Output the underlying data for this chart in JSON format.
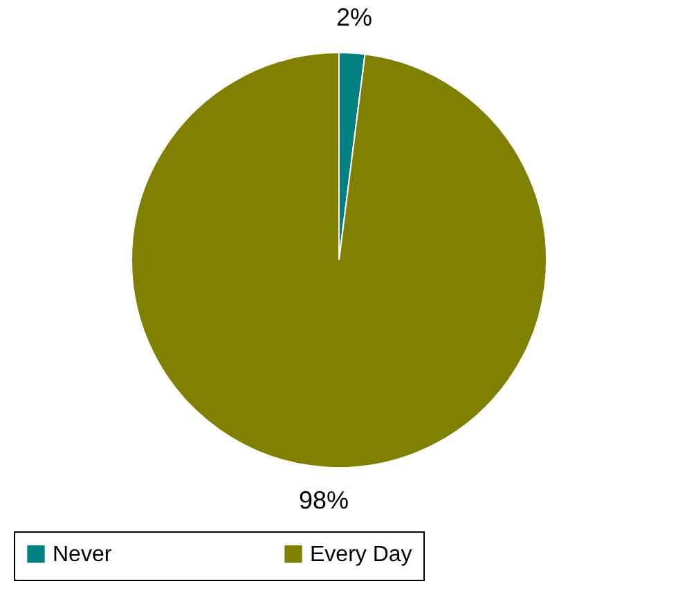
{
  "chart_data": {
    "type": "pie",
    "categories": [
      "Never",
      "Every Day"
    ],
    "values": [
      2,
      98
    ],
    "colors": [
      "#008080",
      "#808000"
    ],
    "value_labels": [
      "2%",
      "98%"
    ],
    "legend": "bottom"
  }
}
